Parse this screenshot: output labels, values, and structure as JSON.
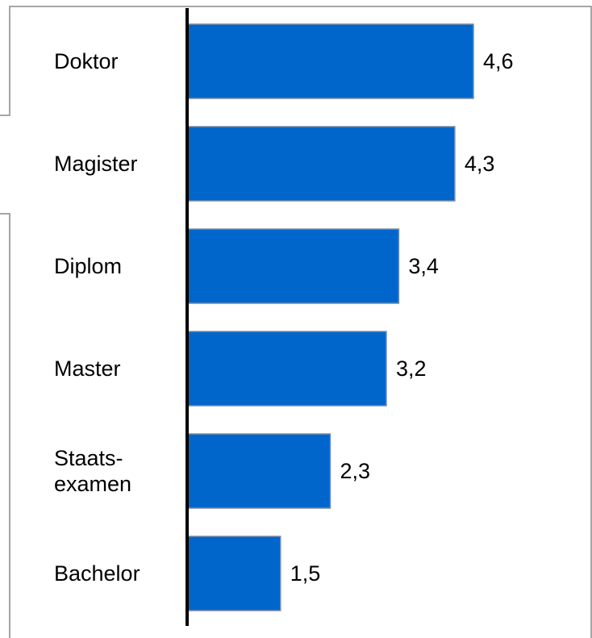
{
  "chart_data": {
    "type": "bar",
    "orientation": "horizontal",
    "categories": [
      "Doktor",
      "Magister",
      "Diplom",
      "Master",
      "Staats-\nexamen",
      "Bachelor"
    ],
    "values": [
      4.6,
      4.3,
      3.4,
      3.2,
      2.3,
      1.5
    ],
    "value_labels": [
      "4,6",
      "4,3",
      "3,4",
      "3,2",
      "2,3",
      "1,5"
    ],
    "color": "#0066cc"
  }
}
